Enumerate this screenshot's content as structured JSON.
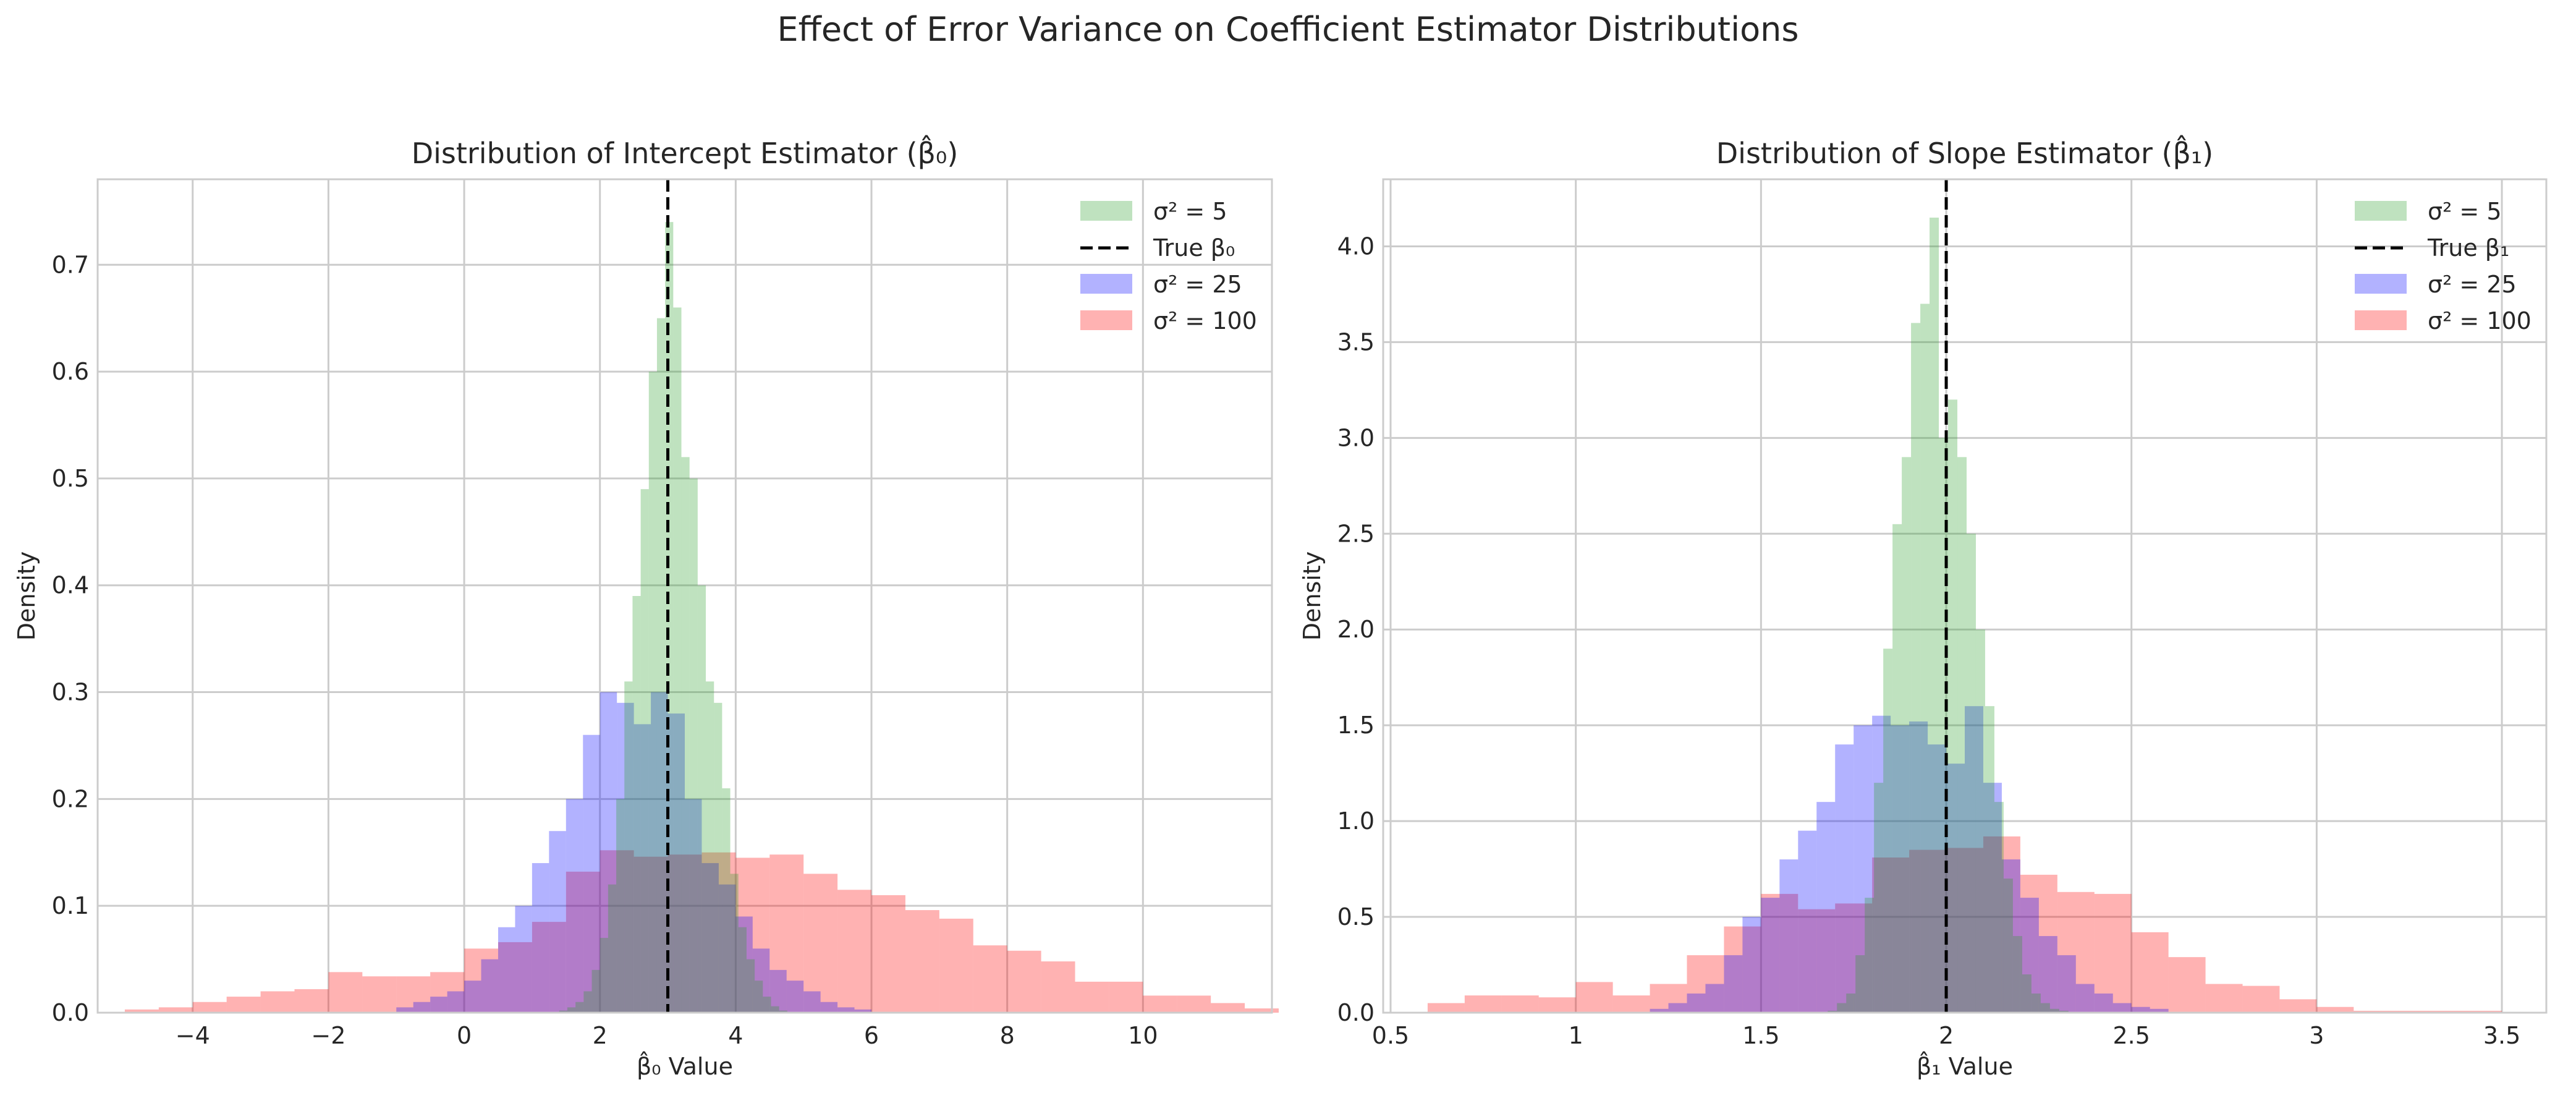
{
  "figure": {
    "title": "Effect of Error Variance on Coefficient Estimator Distributions"
  },
  "chart_data": [
    {
      "type": "histogram",
      "title": "Distribution of Intercept Estimator (β̂₀)",
      "xlabel": "β̂₀ Value",
      "ylabel": "Density",
      "xlim": [
        -5.4,
        11.9
      ],
      "ylim": [
        0,
        0.78
      ],
      "xticks": [
        -4,
        -2,
        0,
        2,
        4,
        6,
        8,
        10
      ],
      "yticks": [
        0.0,
        0.1,
        0.2,
        0.3,
        0.4,
        0.5,
        0.6,
        0.7
      ],
      "grid": true,
      "legend_position": "upper right",
      "true_value": 3,
      "true_label": "True β₀",
      "series": [
        {
          "name": "σ² = 5",
          "color": "#2ca02c",
          "bins_start": 1.4,
          "bin_width": 0.12,
          "values": [
            0.002,
            0.005,
            0.01,
            0.02,
            0.04,
            0.07,
            0.12,
            0.2,
            0.31,
            0.39,
            0.49,
            0.6,
            0.65,
            0.74,
            0.66,
            0.52,
            0.5,
            0.4,
            0.31,
            0.29,
            0.21,
            0.13,
            0.08,
            0.05,
            0.03,
            0.015,
            0.006,
            0.002
          ]
        },
        {
          "name": "σ² = 25",
          "color": "#0000ff",
          "bins_start": -1.0,
          "bin_width": 0.25,
          "values": [
            0.005,
            0.01,
            0.015,
            0.02,
            0.03,
            0.05,
            0.08,
            0.1,
            0.14,
            0.17,
            0.2,
            0.26,
            0.3,
            0.29,
            0.27,
            0.3,
            0.28,
            0.2,
            0.14,
            0.12,
            0.09,
            0.06,
            0.04,
            0.03,
            0.02,
            0.01,
            0.005,
            0.003
          ]
        },
        {
          "name": "σ² = 100",
          "color": "#ff0000",
          "bins_start": -5.0,
          "bin_width": 0.5,
          "values": [
            0.003,
            0.005,
            0.01,
            0.015,
            0.02,
            0.022,
            0.038,
            0.034,
            0.034,
            0.038,
            0.06,
            0.066,
            0.085,
            0.132,
            0.152,
            0.146,
            0.148,
            0.15,
            0.145,
            0.148,
            0.13,
            0.115,
            0.11,
            0.096,
            0.088,
            0.063,
            0.058,
            0.048,
            0.029,
            0.029,
            0.016,
            0.016,
            0.009,
            0.004
          ]
        }
      ]
    },
    {
      "type": "histogram",
      "title": "Distribution of Slope Estimator (β̂₁)",
      "xlabel": "β̂₁ Value",
      "ylabel": "Density",
      "xlim": [
        0.48,
        3.62
      ],
      "ylim": [
        0,
        4.35
      ],
      "xticks": [
        0.5,
        1.0,
        1.5,
        2.0,
        2.5,
        3.0,
        3.5
      ],
      "yticks": [
        0.0,
        0.5,
        1.0,
        1.5,
        2.0,
        2.5,
        3.0,
        3.5,
        4.0
      ],
      "grid": true,
      "legend_position": "upper right",
      "true_value": 2,
      "true_label": "True β₁",
      "series": [
        {
          "name": "σ² = 5",
          "color": "#2ca02c",
          "bins_start": 1.68,
          "bin_width": 0.025,
          "values": [
            0.01,
            0.05,
            0.1,
            0.3,
            0.6,
            1.2,
            1.9,
            2.55,
            2.9,
            3.6,
            3.7,
            4.15,
            3.0,
            3.2,
            2.9,
            2.5,
            2.0,
            1.6,
            1.1,
            0.7,
            0.4,
            0.2,
            0.1,
            0.05,
            0.02,
            0.01
          ]
        },
        {
          "name": "σ² = 25",
          "color": "#0000ff",
          "bins_start": 1.2,
          "bin_width": 0.05,
          "values": [
            0.02,
            0.05,
            0.1,
            0.15,
            0.3,
            0.5,
            0.6,
            0.8,
            0.95,
            1.1,
            1.4,
            1.5,
            1.55,
            1.5,
            1.52,
            1.4,
            1.3,
            1.6,
            1.2,
            0.8,
            0.6,
            0.4,
            0.3,
            0.15,
            0.1,
            0.05,
            0.03,
            0.02
          ]
        },
        {
          "name": "σ² = 100",
          "color": "#ff0000",
          "bins_start": 0.6,
          "bin_width": 0.1,
          "values": [
            0.05,
            0.09,
            0.09,
            0.08,
            0.16,
            0.09,
            0.15,
            0.3,
            0.45,
            0.62,
            0.54,
            0.57,
            0.81,
            0.85,
            0.86,
            0.92,
            0.72,
            0.63,
            0.62,
            0.42,
            0.29,
            0.15,
            0.14,
            0.07,
            0.03,
            0.01,
            0.01,
            0.01,
            0.01
          ]
        }
      ]
    }
  ]
}
